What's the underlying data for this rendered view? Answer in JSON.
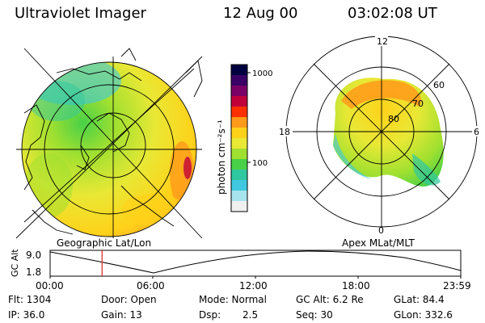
{
  "header": {
    "title": "Ultraviolet Imager",
    "date": "12 Aug 00",
    "time": "03:02:08 UT"
  },
  "colorbar": {
    "label": "photon cm⁻²s⁻¹",
    "ticks": [
      "1000",
      "100"
    ],
    "colors": [
      "#000040",
      "#3a0066",
      "#7a0066",
      "#c0003a",
      "#ff3000",
      "#ff9a1a",
      "#ffd21a",
      "#e8e835",
      "#a0e030",
      "#48d048",
      "#30c8a0",
      "#40c8e0",
      "#a8e4ee",
      "#f0f0f0"
    ]
  },
  "polar": {
    "mlt_labels": [
      "12",
      "18",
      "6",
      "0"
    ],
    "lat_labels": [
      "60",
      "70",
      "80"
    ]
  },
  "panel_labels": {
    "left": "Geographic Lat/Lon",
    "right": "Apex MLat/MLT"
  },
  "alt_plot": {
    "ylabel": "GC Alt",
    "yticks": [
      "9.0",
      "1.8"
    ],
    "xticks": [
      "00:00",
      "06:00",
      "12:00",
      "18:00",
      "23:59"
    ],
    "marker_time": "03:02"
  },
  "info": {
    "flt": "Flt: 1304",
    "ip": "IP: 36.0",
    "door": "Door: Open",
    "gain": "Gain: 13",
    "mode": "Mode: Normal",
    "dsp_label": "Dsp:",
    "dsp_value": "2.5",
    "gc_alt": "GC Alt: 6.2 Re",
    "seq": "Seq: 30",
    "glat": "GLat: 84.4",
    "glon": "GLon: 332.6"
  }
}
